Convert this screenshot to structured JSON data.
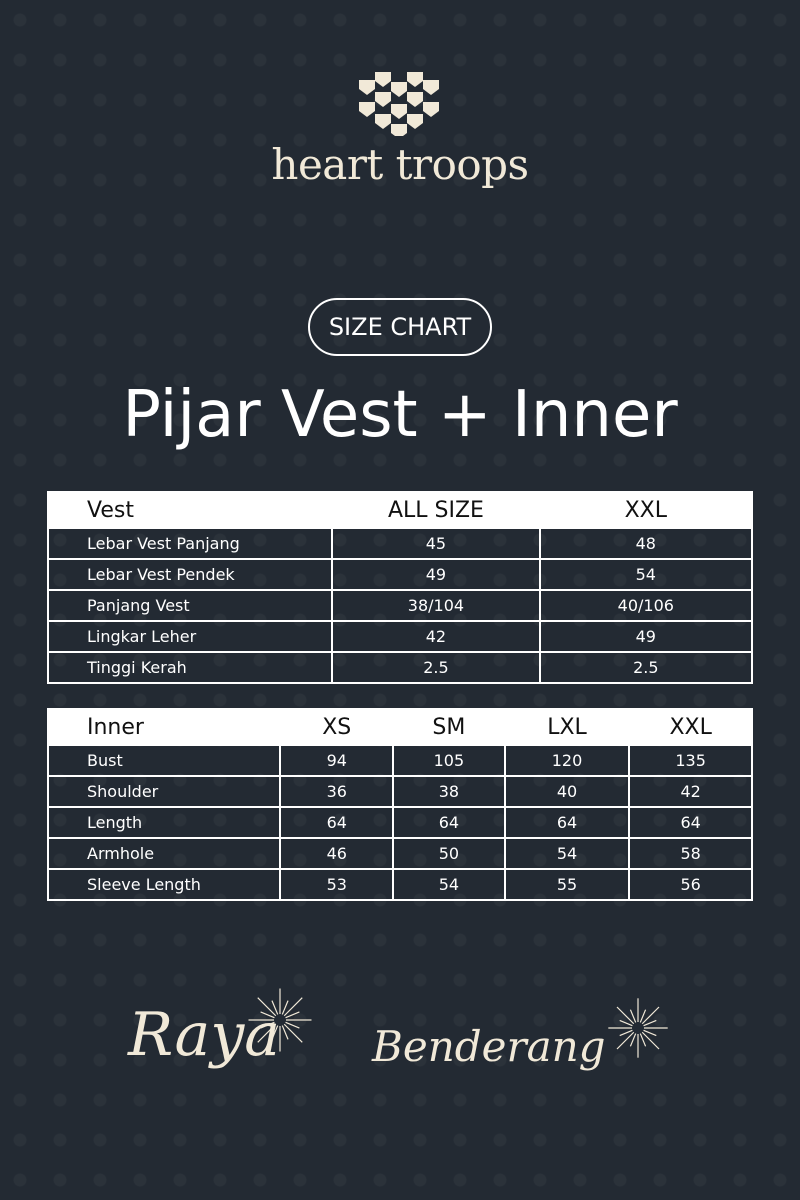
{
  "brand": {
    "name": "heart troops",
    "logo_icon": "shield-heart-grid-icon",
    "color": "#f1e9d8"
  },
  "badge": "SIZE CHART",
  "title": "Pijar Vest + Inner",
  "vest_table": {
    "headers": [
      "Vest",
      "ALL SIZE",
      "XXL"
    ],
    "rows": [
      [
        "Lebar Vest Panjang",
        "45",
        "48"
      ],
      [
        "Lebar Vest Pendek",
        "49",
        "54"
      ],
      [
        "Panjang Vest",
        "38/104",
        "40/106"
      ],
      [
        "Lingkar Leher",
        "42",
        "49"
      ],
      [
        "Tinggi Kerah",
        "2.5",
        "2.5"
      ]
    ]
  },
  "inner_table": {
    "headers": [
      "Inner",
      "XS",
      "SM",
      "LXL",
      "XXL"
    ],
    "rows": [
      [
        "Bust",
        "94",
        "105",
        "120",
        "135"
      ],
      [
        "Shoulder",
        "36",
        "38",
        "40",
        "42"
      ],
      [
        "Length",
        "64",
        "64",
        "64",
        "64"
      ],
      [
        "Armhole",
        "46",
        "50",
        "54",
        "58"
      ],
      [
        "Sleeve Length",
        "53",
        "54",
        "55",
        "56"
      ]
    ]
  },
  "footer": {
    "word1": "Raya",
    "word2": "Benderang",
    "icon": "sparkle-firework-icon"
  },
  "colors": {
    "background": "#232a33",
    "cream": "#f1e9d8",
    "white": "#ffffff"
  }
}
